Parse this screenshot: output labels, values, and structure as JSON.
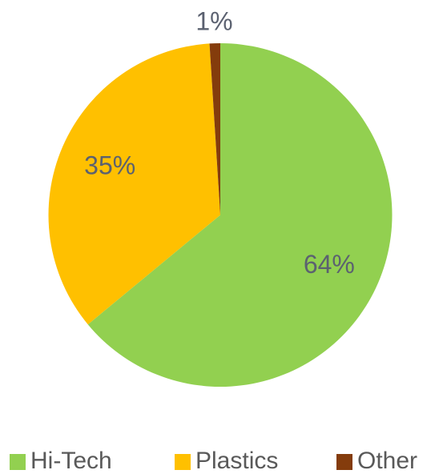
{
  "chart_data": {
    "type": "pie",
    "categories": [
      "Hi-Tech",
      "Plastics",
      "Other"
    ],
    "values": [
      64,
      35,
      1
    ],
    "value_labels": [
      "64%",
      "35%",
      "1%"
    ],
    "colors": [
      "#92d050",
      "#ffc000",
      "#843c0c"
    ],
    "legend": "bottom"
  }
}
